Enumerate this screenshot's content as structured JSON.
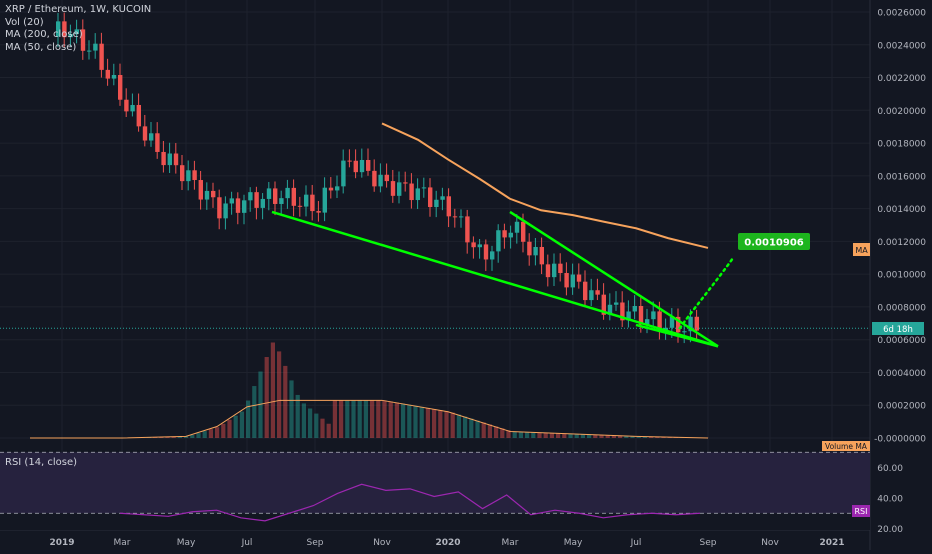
{
  "header": {
    "symbol_line": "XRP / Ethereum, 1W, KUCOIN",
    "indicators": [
      "Vol (20)",
      "MA (200, close)",
      "MA (50, close)"
    ]
  },
  "rsi_panel": {
    "title": "RSI (14, close)",
    "tag": "RSI"
  },
  "badges": {
    "ma": "MA",
    "time_left": "6d 18h",
    "volume_ma": "Volume MA"
  },
  "target_label": "0.0010906",
  "colors": {
    "background": "#131722",
    "up": "#26a69a",
    "down": "#ef5350",
    "ma": "#f7a35c",
    "trendline": "#00ff00",
    "rsi_line": "#9c27b0",
    "grid": "#1e222d"
  },
  "chart_data": [
    {
      "type": "candlestick",
      "title": "XRP / Ethereum, 1W, KUCOIN",
      "y_axis": {
        "ticks": [
          "0.0026000",
          "0.0024000",
          "0.0022000",
          "0.0020000",
          "0.0018000",
          "0.0016000",
          "0.0014000",
          "0.0012000",
          "0.0010000",
          "0.0008000",
          "0.0006000",
          "0.0004000",
          "0.0002000",
          "-0.0000000"
        ]
      },
      "x_axis": {
        "ticks": [
          "2019",
          "Mar",
          "May",
          "Jul",
          "Sep",
          "Nov",
          "2020",
          "Mar",
          "May",
          "Jul",
          "Sep",
          "Nov",
          "2021"
        ]
      },
      "series": [
        {
          "name": "MA (200, close)",
          "points": [
            [
              "Nov 2019",
              0.00192
            ],
            [
              "Dec 2019",
              0.00182
            ],
            [
              "Jan 2020",
              0.0017
            ],
            [
              "Feb 2020",
              0.00158
            ],
            [
              "Mar 2020",
              0.00146
            ],
            [
              "Apr 2020",
              0.00139
            ],
            [
              "May 2020",
              0.00136
            ],
            [
              "Jun 2020",
              0.00132
            ],
            [
              "Jul 2020",
              0.00128
            ],
            [
              "Aug 2020",
              0.00122
            ],
            [
              "late Aug 2020",
              0.00116
            ]
          ]
        },
        {
          "name": "price (approx. close)",
          "points": [
            [
              "Dec 2018",
              0.00245
            ],
            [
              "Jan 2019",
              0.0025
            ],
            [
              "Feb 2019",
              0.00235
            ],
            [
              "Mar 2019",
              0.00205
            ],
            [
              "Apr 2019",
              0.00175
            ],
            [
              "May 2019",
              0.0016
            ],
            [
              "Jun 2019",
              0.0014
            ],
            [
              "Jul 2019",
              0.00145
            ],
            [
              "Aug 2019",
              0.00148
            ],
            [
              "Sep 2019",
              0.0014
            ],
            [
              "Oct 2019",
              0.0017
            ],
            [
              "Nov 2019",
              0.00155
            ],
            [
              "Dec 2019",
              0.0015
            ],
            [
              "Jan 2020",
              0.0014
            ],
            [
              "Feb 2020",
              0.0011
            ],
            [
              "Mar 2020",
              0.0013
            ],
            [
              "Apr 2020",
              0.00105
            ],
            [
              "May 2020",
              0.00095
            ],
            [
              "Jun 2020",
              0.0008
            ],
            [
              "Jul 2020",
              0.00075
            ],
            [
              "Aug 2020",
              0.00068
            ]
          ]
        }
      ],
      "annotations": [
        {
          "type": "trendline",
          "from": [
            "Aug 2019",
            0.00138
          ],
          "to": [
            "late Aug 2020",
            0.00056
          ]
        },
        {
          "type": "trendline",
          "from": [
            "Mar 2020",
            0.00138
          ],
          "to": [
            "late Aug 2020",
            0.00056
          ]
        },
        {
          "type": "trendline",
          "from": [
            "Jul 2020",
            0.00069
          ],
          "to": [
            "late Aug 2020",
            0.00056
          ]
        },
        {
          "type": "projection",
          "from": [
            "Aug 2020",
            0.00067
          ],
          "to": [
            "Sep 2020",
            0.00109
          ]
        },
        {
          "type": "label",
          "text": "0.0010906",
          "value": 0.0010906
        },
        {
          "type": "price_line",
          "value": 0.00067,
          "label": "6d 18h"
        }
      ]
    },
    {
      "type": "bar",
      "title": "Vol (20)",
      "note": "volume histogram with moving average; volume peaks Jul–Aug 2019",
      "series": [
        {
          "name": "Volume MA",
          "values": [
            0.0,
            0.0,
            0.0,
            1e-05,
            7e-05,
            0.00019,
            0.00023,
            0.00023,
            0.00023,
            0.00016,
            4e-05,
            1e-05,
            0.0
          ]
        }
      ]
    },
    {
      "type": "line",
      "title": "RSI (14, close)",
      "y_axis": {
        "ticks": [
          "60.00",
          "40.00",
          "20.00"
        ],
        "bands": [
          30,
          70
        ]
      },
      "series": [
        {
          "name": "RSI",
          "values": [
            30,
            29,
            28,
            31,
            32,
            27,
            25,
            30,
            35,
            43,
            49,
            45,
            46,
            41,
            44,
            33,
            42,
            29,
            32,
            30,
            27,
            29,
            30,
            29,
            30
          ]
        }
      ]
    }
  ]
}
